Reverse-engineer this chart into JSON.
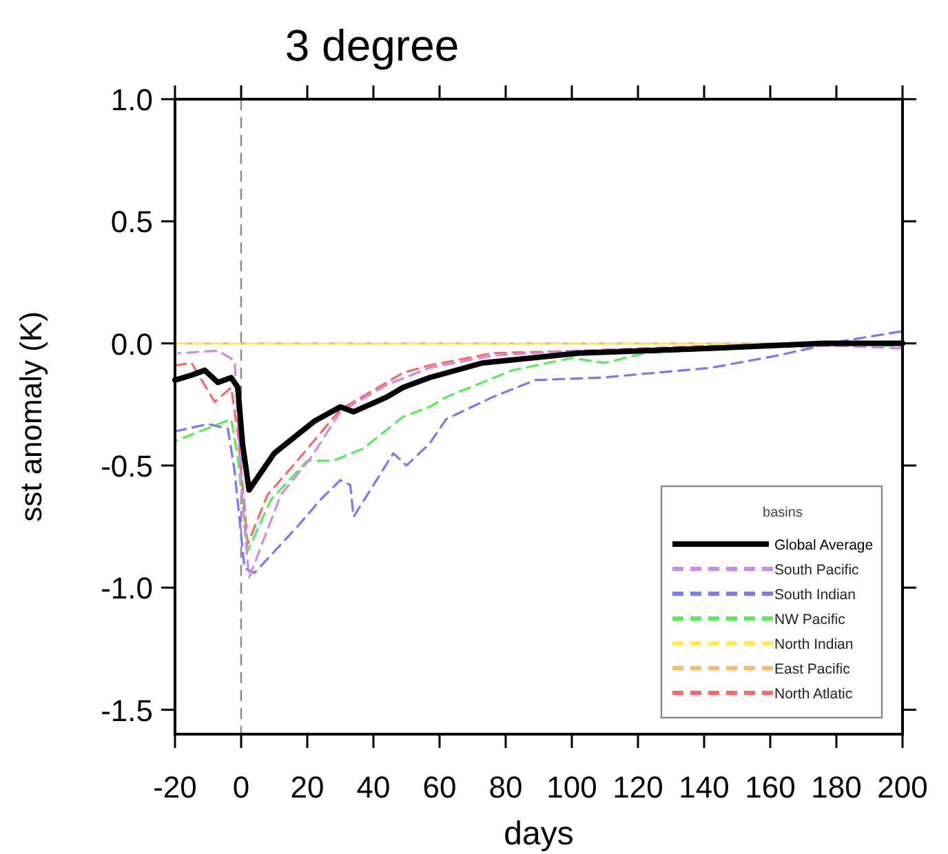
{
  "chart_data": {
    "type": "line",
    "title": "3 degree",
    "xlabel": "days",
    "ylabel": "sst anomaly (K)",
    "legend_title": "basins",
    "legend": "bottom right",
    "grid": false,
    "xlim": [
      -20,
      200
    ],
    "xticks": [
      -20,
      0,
      20,
      40,
      60,
      80,
      100,
      120,
      140,
      160,
      180,
      200
    ],
    "ylim": [
      -1.6,
      1.0
    ],
    "yticks": [
      {
        "value": 1,
        "label": "1.0"
      },
      {
        "value": 0.5,
        "label": "0.5"
      },
      {
        "value": 0,
        "label": "0.0"
      },
      {
        "value": -0.5,
        "label": "-0.5"
      },
      {
        "value": -1,
        "label": "-1.0"
      },
      {
        "value": -1.5,
        "label": "-1.5"
      }
    ],
    "ref_lines": [
      {
        "axis": "x",
        "value": 0,
        "color": "#888888",
        "line_style": "dashed"
      }
    ],
    "series": [
      {
        "name": "Global Average",
        "color": "#000000",
        "line_style": "solid",
        "x": [
          -20,
          -15,
          -11,
          -7,
          -3,
          -1,
          0.4,
          2.4,
          10,
          22,
          30,
          34,
          44,
          49,
          57,
          73,
          102,
          142,
          176,
          200
        ],
        "values": [
          -0.15,
          -0.13,
          -0.11,
          -0.16,
          -0.14,
          -0.18,
          -0.41,
          -0.6,
          -0.45,
          -0.32,
          -0.26,
          -0.28,
          -0.22,
          -0.18,
          -0.14,
          -0.08,
          -0.04,
          -0.02,
          0,
          0
        ]
      },
      {
        "name": "South Pacific",
        "color": "#cc88ee",
        "line_style": "dashed",
        "x": [
          -19,
          -7,
          -2,
          0.4,
          2.4,
          12,
          21,
          30,
          44,
          57,
          76,
          100,
          140,
          180,
          200
        ],
        "values": [
          -0.04,
          -0.03,
          -0.07,
          -0.65,
          -0.96,
          -0.62,
          -0.47,
          -0.28,
          -0.17,
          -0.1,
          -0.05,
          -0.03,
          -0.02,
          -0.01,
          -0.02
        ]
      },
      {
        "name": "South Indian",
        "color": "#7777ff",
        "line_style": "dashed",
        "x": [
          -20,
          -10,
          -4,
          -2,
          1,
          4,
          17,
          24,
          30,
          33,
          34,
          46,
          50,
          57,
          62,
          76,
          89,
          109,
          142,
          162,
          182,
          200
        ],
        "values": [
          -0.36,
          -0.33,
          -0.35,
          -0.52,
          -0.92,
          -0.94,
          -0.75,
          -0.64,
          -0.56,
          -0.58,
          -0.71,
          -0.45,
          -0.5,
          -0.41,
          -0.31,
          -0.22,
          -0.15,
          -0.14,
          -0.1,
          -0.05,
          0.01,
          0.05
        ]
      },
      {
        "name": "NW Pacific",
        "color": "#55ee55",
        "line_style": "dashed",
        "x": [
          -20,
          -3,
          -1,
          2,
          9,
          20,
          28,
          37,
          49,
          57,
          62,
          82,
          100,
          110,
          122,
          150,
          180,
          200
        ],
        "values": [
          -0.4,
          -0.31,
          -0.47,
          -0.85,
          -0.64,
          -0.48,
          -0.48,
          -0.43,
          -0.3,
          -0.26,
          -0.22,
          -0.11,
          -0.06,
          -0.08,
          -0.04,
          -0.02,
          0,
          -0.01
        ]
      },
      {
        "name": "North Indian",
        "color": "#ffee44",
        "line_style": "dashed",
        "x": [
          -20,
          200
        ],
        "values": [
          0,
          0
        ]
      },
      {
        "name": "East Pacific",
        "color": "#ffbb66",
        "line_style": "dashed",
        "x": [
          -20,
          200
        ],
        "values": [
          0,
          0
        ]
      },
      {
        "name": "North Atlatic",
        "color": "#ff6666",
        "line_style": "dashed",
        "x": [
          -20,
          -15,
          -8,
          -3,
          -1,
          2,
          8,
          17,
          30,
          44,
          49,
          57,
          76,
          102,
          142,
          182,
          200
        ],
        "values": [
          -0.09,
          -0.08,
          -0.24,
          -0.18,
          -0.37,
          -0.82,
          -0.62,
          -0.48,
          -0.27,
          -0.16,
          -0.12,
          -0.09,
          -0.04,
          -0.03,
          -0.01,
          -0.01,
          0
        ]
      }
    ]
  }
}
